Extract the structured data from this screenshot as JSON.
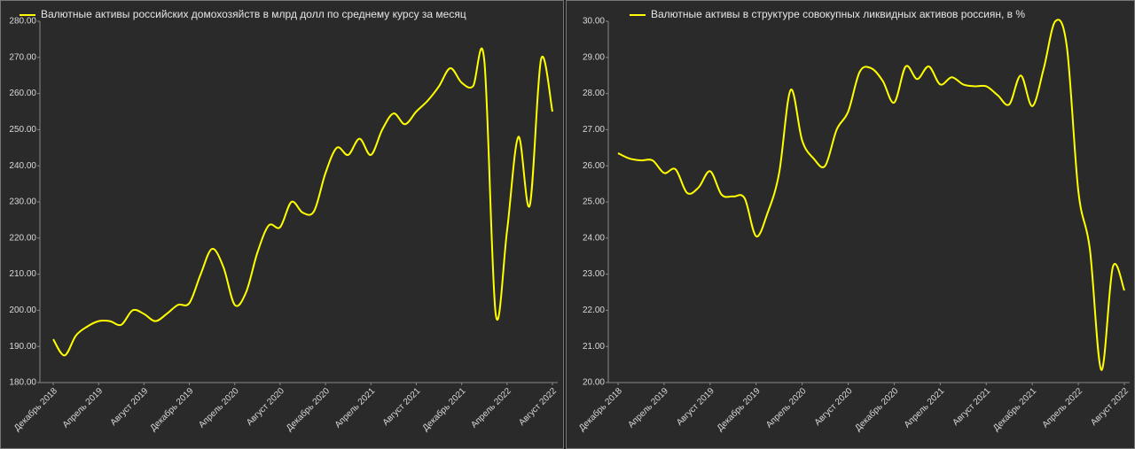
{
  "chart_data": [
    {
      "type": "line",
      "categories": [
        "Декабрь 2018",
        null,
        null,
        null,
        "Апрель 2019",
        null,
        null,
        null,
        "Август 2019",
        null,
        null,
        null,
        "Декабрь 2019",
        null,
        null,
        null,
        "Апрель 2020",
        null,
        null,
        null,
        "Август 2020",
        null,
        null,
        null,
        "Декабрь 2020",
        null,
        null,
        null,
        "Апрель 2021",
        null,
        null,
        null,
        "Август 2021",
        null,
        null,
        null,
        "Декабрь 2021",
        null,
        null,
        null,
        "Апрель 2022",
        null,
        null,
        null,
        "Август 2022"
      ],
      "series": [
        {
          "name": "Валютные активы российских домохозяйств в млрд долл по среднему курсу за месяц",
          "color": "#ffff00",
          "values": [
            192,
            187.5,
            193,
            195.5,
            197,
            197,
            196,
            200,
            199,
            197,
            199,
            201.5,
            202,
            210,
            217,
            212,
            201.5,
            205,
            216,
            223.5,
            223,
            230,
            227,
            227.5,
            238,
            245,
            243,
            247.5,
            243,
            250,
            254.5,
            251.5,
            255,
            258,
            262,
            267,
            263,
            262,
            269,
            199,
            222,
            248,
            229,
            269.5,
            255
          ]
        }
      ],
      "ylim": [
        180,
        280
      ],
      "yticks": [
        {
          "value": 180,
          "label": "180.00"
        },
        {
          "value": 190,
          "label": "190.00"
        },
        {
          "value": 200,
          "label": "200.00"
        },
        {
          "value": 210,
          "label": "210.00"
        },
        {
          "value": 220,
          "label": "220.00"
        },
        {
          "value": 230,
          "label": "230.00"
        },
        {
          "value": 240,
          "label": "240.00"
        },
        {
          "value": 250,
          "label": "250.00"
        },
        {
          "value": 260,
          "label": "260.00"
        },
        {
          "value": 270,
          "label": "270.00"
        },
        {
          "value": 280,
          "label": "280.00"
        }
      ],
      "grid": false,
      "legend": "top"
    },
    {
      "type": "line",
      "categories": [
        "Декабрь 2018",
        null,
        null,
        null,
        "Апрель 2019",
        null,
        null,
        null,
        "Август 2019",
        null,
        null,
        null,
        "Декабрь 2019",
        null,
        null,
        null,
        "Апрель 2020",
        null,
        null,
        null,
        "Август 2020",
        null,
        null,
        null,
        "Декабрь 2020",
        null,
        null,
        null,
        "Апрель 2021",
        null,
        null,
        null,
        "Август 2021",
        null,
        null,
        null,
        "Декабрь 2021",
        null,
        null,
        null,
        "Апрель 2022",
        null,
        null,
        null,
        "Август 2022"
      ],
      "series": [
        {
          "name": "Валютные активы в структуре совокупных ликвидных активов россиян, в %",
          "color": "#ffff00",
          "values": [
            26.35,
            26.2,
            26.15,
            26.15,
            25.8,
            25.9,
            25.25,
            25.4,
            25.85,
            25.2,
            25.15,
            25.1,
            24.05,
            24.7,
            25.8,
            28.1,
            26.7,
            26.2,
            26.0,
            27.0,
            27.5,
            28.6,
            28.7,
            28.35,
            27.75,
            28.75,
            28.4,
            28.75,
            28.25,
            28.45,
            28.25,
            28.2,
            28.2,
            27.95,
            27.7,
            28.5,
            27.65,
            28.7,
            30.0,
            29.3,
            25.3,
            23.7,
            20.35,
            23.2,
            22.55
          ]
        }
      ],
      "ylim": [
        20,
        30
      ],
      "yticks": [
        {
          "value": 20,
          "label": "20.00"
        },
        {
          "value": 21,
          "label": "21.00"
        },
        {
          "value": 22,
          "label": "22.00"
        },
        {
          "value": 23,
          "label": "23.00"
        },
        {
          "value": 24,
          "label": "24.00"
        },
        {
          "value": 25,
          "label": "25.00"
        },
        {
          "value": 26,
          "label": "26.00"
        },
        {
          "value": 27,
          "label": "27.00"
        },
        {
          "value": 28,
          "label": "28.00"
        },
        {
          "value": 29,
          "label": "29.00"
        },
        {
          "value": 30,
          "label": "30.00"
        }
      ],
      "grid": false,
      "legend": "top"
    }
  ]
}
